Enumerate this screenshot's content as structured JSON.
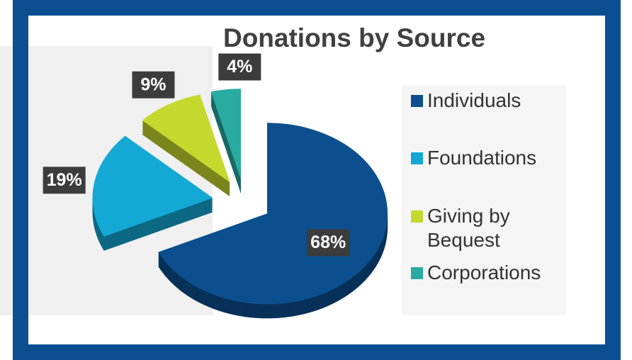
{
  "chart_data": {
    "type": "pie",
    "title": "Donations by Source",
    "categories": [
      "Individuals",
      "Foundations",
      "Giving by Bequest",
      "Corporations"
    ],
    "values": [
      68,
      19,
      9,
      4
    ],
    "value_labels": [
      "68%",
      "19%",
      "9%",
      "4%"
    ],
    "colors": [
      "#0b4f8e",
      "#14a8d4",
      "#c4d82e",
      "#2aaba1"
    ],
    "legend": "right"
  }
}
